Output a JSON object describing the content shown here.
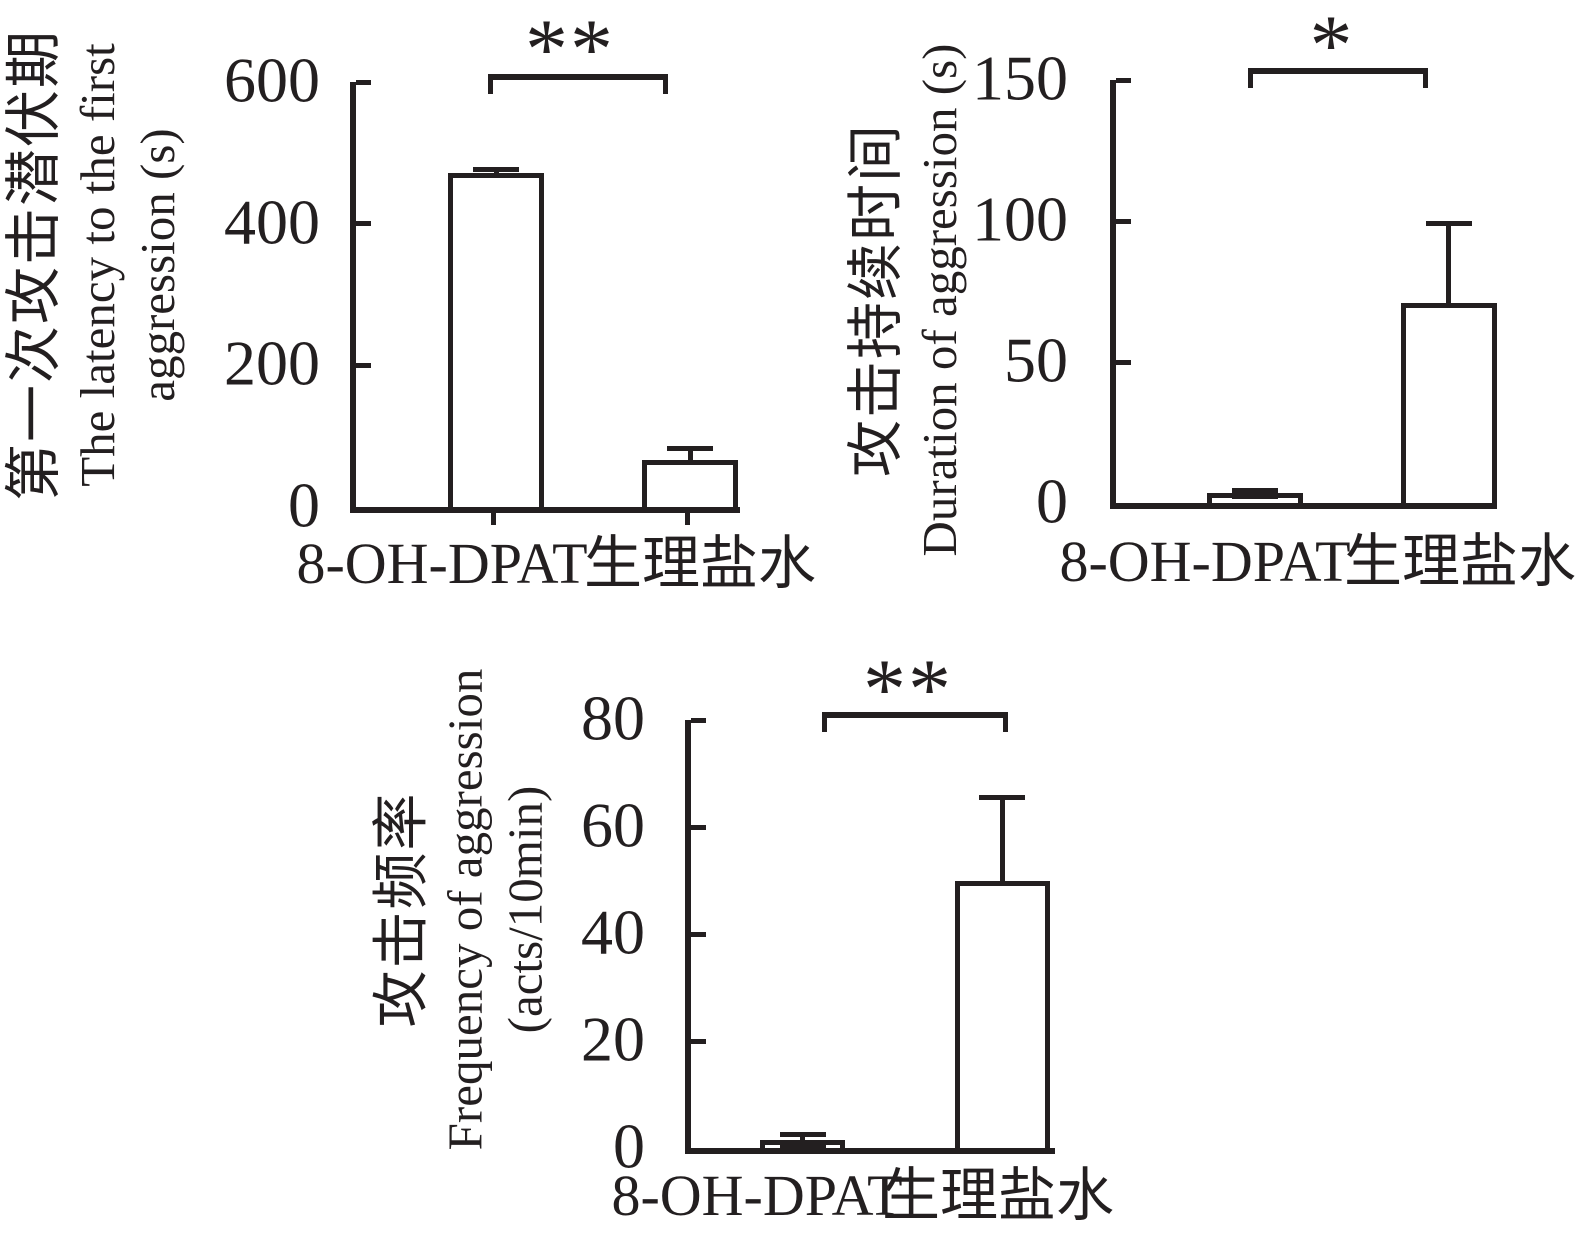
{
  "figure": {
    "background": "#ffffff",
    "ink_color": "#231f20",
    "bar_fill": "#ffffff"
  },
  "chart_data": [
    {
      "type": "bar",
      "title": "",
      "ylabel_zh": "第一次攻击潜伏期",
      "ylabel_en_lines": [
        "The latency to the first",
        "aggression (s)"
      ],
      "xlabel": "",
      "categories": [
        "8-OH-DPAT",
        "生理盐水"
      ],
      "values": [
        472,
        66
      ],
      "errors": [
        8,
        20
      ],
      "yticks": [
        0,
        200,
        400,
        600
      ],
      "ylim": [
        0,
        600
      ],
      "significance": "**",
      "grid": false,
      "legend": "none"
    },
    {
      "type": "bar",
      "title": "",
      "ylabel_zh": "攻击持续时间",
      "ylabel_en_lines": [
        "Duration of aggression (s)"
      ],
      "xlabel": "",
      "categories": [
        "8-OH-DPAT",
        "生理盐水"
      ],
      "values": [
        3.5,
        71
      ],
      "errors": [
        2,
        29
      ],
      "yticks": [
        0,
        50,
        100,
        150
      ],
      "ylim": [
        0,
        150
      ],
      "significance": "*",
      "grid": false,
      "legend": "none"
    },
    {
      "type": "bar",
      "title": "",
      "ylabel_zh": "攻击频率",
      "ylabel_en_lines": [
        "Frequency of aggression",
        "(acts/10min)"
      ],
      "xlabel": "",
      "categories": [
        "8-OH-DPAT",
        "生理盐水"
      ],
      "values": [
        1.5,
        50
      ],
      "errors": [
        1.5,
        16
      ],
      "yticks": [
        0,
        20,
        40,
        60,
        80
      ],
      "ylim": [
        0,
        80
      ],
      "significance": "**",
      "grid": false,
      "legend": "none"
    }
  ]
}
